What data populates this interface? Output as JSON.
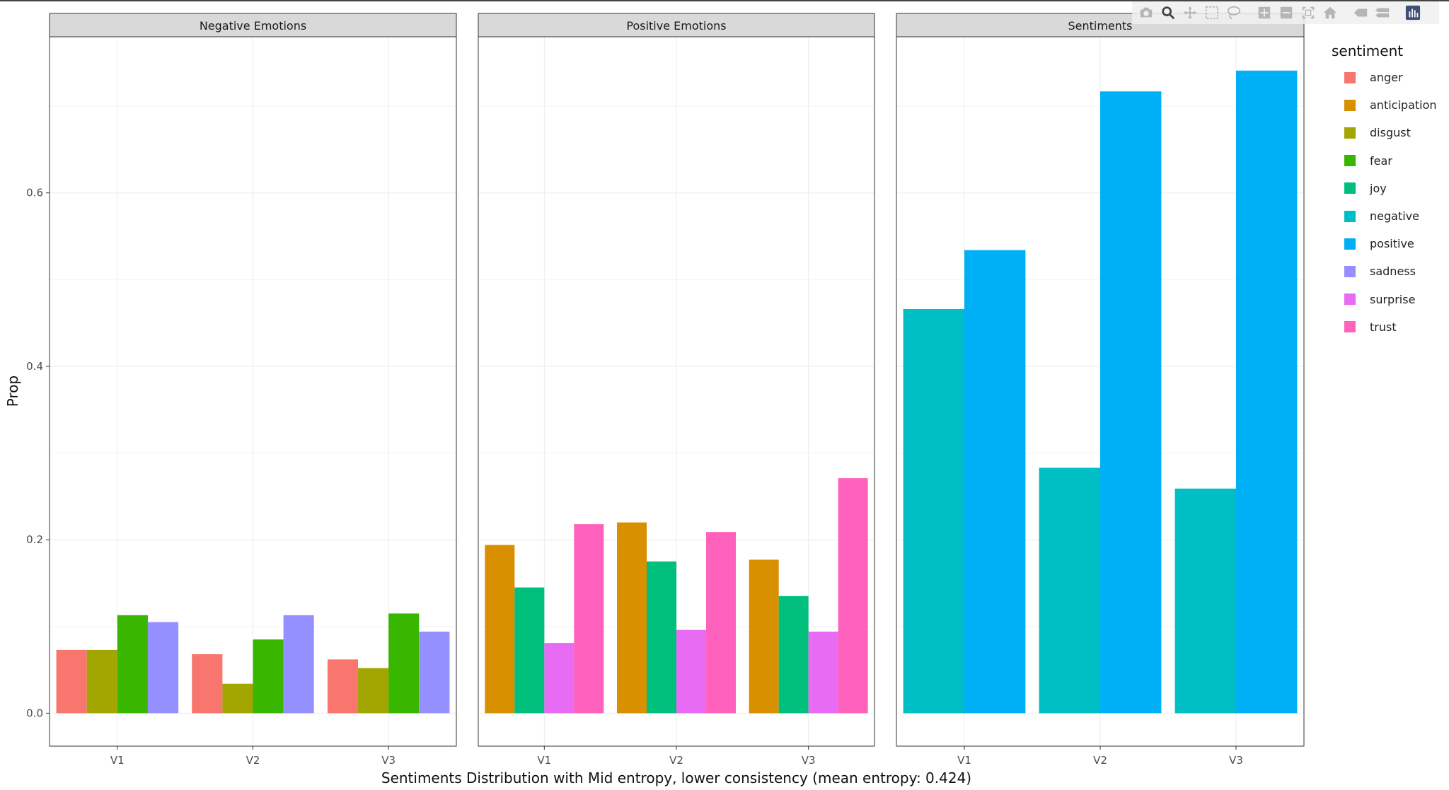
{
  "chart_data": {
    "type": "bar",
    "title": "",
    "xlabel": "Sentiments Distribution with Mid entropy, lower consistency (mean entropy: 0.424)",
    "ylabel": "Prop",
    "ylim": [
      -0.038,
      0.78
    ],
    "yticks": [
      "0.0",
      "0.2",
      "0.4",
      "0.6"
    ],
    "ytick_values": [
      0.0,
      0.2,
      0.4,
      0.6
    ],
    "categories": [
      "V1",
      "V2",
      "V3"
    ],
    "grid": true,
    "legend_placement": "right",
    "legend_title": "sentiment",
    "legend": [
      {
        "name": "anger",
        "color": "#F8766D"
      },
      {
        "name": "anticipation",
        "color": "#D89000"
      },
      {
        "name": "disgust",
        "color": "#A3A500"
      },
      {
        "name": "fear",
        "color": "#39B600"
      },
      {
        "name": "joy",
        "color": "#00BF7D"
      },
      {
        "name": "negative",
        "color": "#00BFC4"
      },
      {
        "name": "positive",
        "color": "#00B0F6"
      },
      {
        "name": "sadness",
        "color": "#9590FF"
      },
      {
        "name": "surprise",
        "color": "#E76BF3"
      },
      {
        "name": "trust",
        "color": "#FF62BC"
      }
    ],
    "panels": [
      {
        "title": "Negative Emotions",
        "series": [
          {
            "name": "anger",
            "values": [
              0.073,
              0.068,
              0.062
            ]
          },
          {
            "name": "disgust",
            "values": [
              0.073,
              0.034,
              0.052
            ]
          },
          {
            "name": "fear",
            "values": [
              0.113,
              0.085,
              0.115
            ]
          },
          {
            "name": "sadness",
            "values": [
              0.105,
              0.113,
              0.094
            ]
          }
        ]
      },
      {
        "title": "Positive Emotions",
        "series": [
          {
            "name": "anticipation",
            "values": [
              0.194,
              0.22,
              0.177
            ]
          },
          {
            "name": "joy",
            "values": [
              0.145,
              0.175,
              0.135
            ]
          },
          {
            "name": "surprise",
            "values": [
              0.081,
              0.096,
              0.094
            ]
          },
          {
            "name": "trust",
            "values": [
              0.218,
              0.209,
              0.271
            ]
          }
        ]
      },
      {
        "title": "Sentiments",
        "series": [
          {
            "name": "negative",
            "values": [
              0.466,
              0.283,
              0.259
            ]
          },
          {
            "name": "positive",
            "values": [
              0.534,
              0.717,
              0.741
            ]
          }
        ]
      }
    ]
  },
  "modebar": {
    "buttons": [
      {
        "icon": "camera-icon",
        "name": "download-plot-button"
      },
      {
        "icon": "zoom-icon",
        "name": "zoom-button"
      },
      {
        "icon": "pan-icon",
        "name": "pan-button"
      },
      {
        "icon": "box-select-icon",
        "name": "box-select-button"
      },
      {
        "icon": "lasso-icon",
        "name": "lasso-select-button"
      },
      {
        "icon": "zoom-in-icon",
        "name": "zoom-in-button"
      },
      {
        "icon": "zoom-out-icon",
        "name": "zoom-out-button"
      },
      {
        "icon": "autoscale-icon",
        "name": "autoscale-button"
      },
      {
        "icon": "home-icon",
        "name": "reset-axes-button"
      },
      {
        "icon": "spike-lines-icon",
        "name": "spike-lines-button"
      },
      {
        "icon": "hover-compare-icon",
        "name": "hover-compare-button"
      },
      {
        "icon": "plotly-logo-icon",
        "name": "plotly-logo-link"
      }
    ]
  }
}
